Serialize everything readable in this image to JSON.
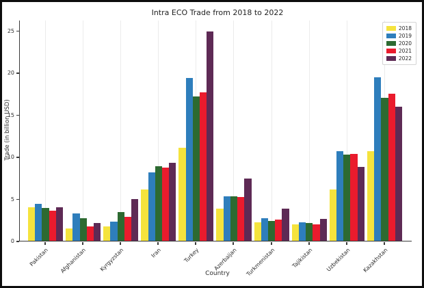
{
  "figure": {
    "background": "#ffffff",
    "frame_border_color": "#0d0d0d",
    "axis_color": "#3a3a3a",
    "gridline_color": "#ebebeb",
    "text_color": "#262626"
  },
  "chart_data": {
    "type": "bar",
    "title": "Intra ECO Trade from 2018 to 2022",
    "xlabel": "Country",
    "ylabel": "Trade (in billion USD)",
    "ylim": [
      0,
      26.3
    ],
    "yticks": [
      0,
      5,
      10,
      15,
      20,
      25
    ],
    "grid": "faint vertical gridlines at category centers",
    "legend_position": "upper right",
    "categories": [
      "Pakistan",
      "Afghanistan",
      "Kyrgyzstan",
      "Iran",
      "Turkey",
      "Azerbaijan",
      "Turkmenistan",
      "Tajikistan",
      "Uzbekistan",
      "Kazakhstan"
    ],
    "series": [
      {
        "name": "2018",
        "color": "#F5E33D",
        "values": [
          4.0,
          1.5,
          1.7,
          6.1,
          11.1,
          3.8,
          2.2,
          2.0,
          6.1,
          10.7
        ]
      },
      {
        "name": "2019",
        "color": "#2E7EBC",
        "values": [
          4.4,
          3.3,
          2.3,
          8.2,
          19.4,
          5.3,
          2.7,
          2.2,
          10.7,
          19.5
        ]
      },
      {
        "name": "2020",
        "color": "#2D6A31",
        "values": [
          3.9,
          2.7,
          3.4,
          8.9,
          17.2,
          5.3,
          2.4,
          2.1,
          10.3,
          17.1
        ]
      },
      {
        "name": "2021",
        "color": "#EA1B2D",
        "values": [
          3.6,
          1.7,
          2.9,
          8.7,
          17.7,
          5.2,
          2.5,
          2.0,
          10.4,
          17.6
        ]
      },
      {
        "name": "2022",
        "color": "#5E2A55",
        "values": [
          4.0,
          2.1,
          5.0,
          9.3,
          25.0,
          7.4,
          3.8,
          2.6,
          8.8,
          16.0
        ]
      }
    ]
  }
}
